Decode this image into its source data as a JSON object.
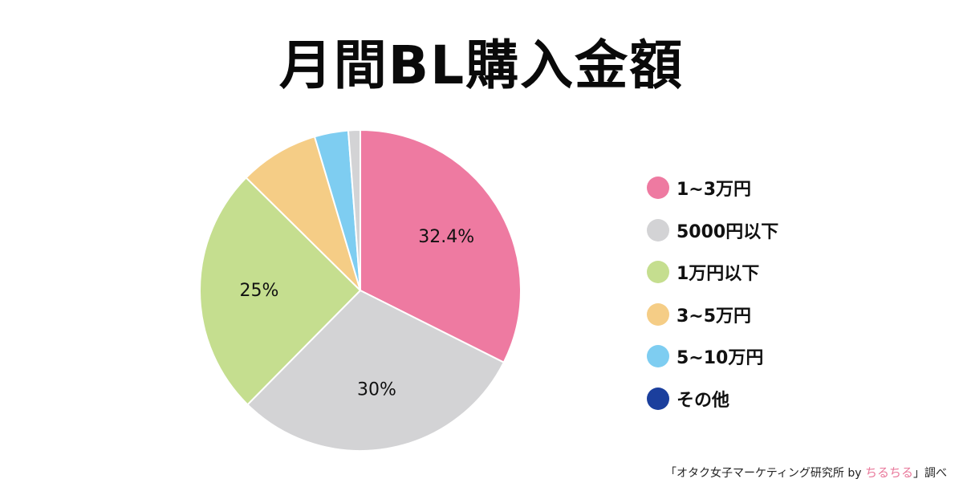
{
  "chart_data": {
    "type": "pie",
    "title": "月間BL購入金額",
    "legend_position": "right",
    "categories": [
      "1~3万円",
      "5000円以下",
      "1万円以下",
      "3~5万円",
      "5~10万円",
      "その他"
    ],
    "values": [
      32.4,
      30,
      25,
      8,
      3.4,
      1.2
    ],
    "data_labels": [
      "32.4%",
      "30%",
      "25%",
      "",
      "",
      ""
    ],
    "colors": [
      "#ee7aa1",
      "#d3d3d5",
      "#c5de8f",
      "#f5cd86",
      "#7ecdf1",
      "#1b3f9d"
    ],
    "slice_colors": [
      "#ee7aa1",
      "#d3d3d5",
      "#c5de8f",
      "#f5cd86",
      "#7ecdf1",
      "#d3d3d5"
    ]
  },
  "credit": {
    "prefix": "「オタク女子マーケティング研究所 by ",
    "brand": "ちるちる",
    "suffix": "」調べ"
  }
}
